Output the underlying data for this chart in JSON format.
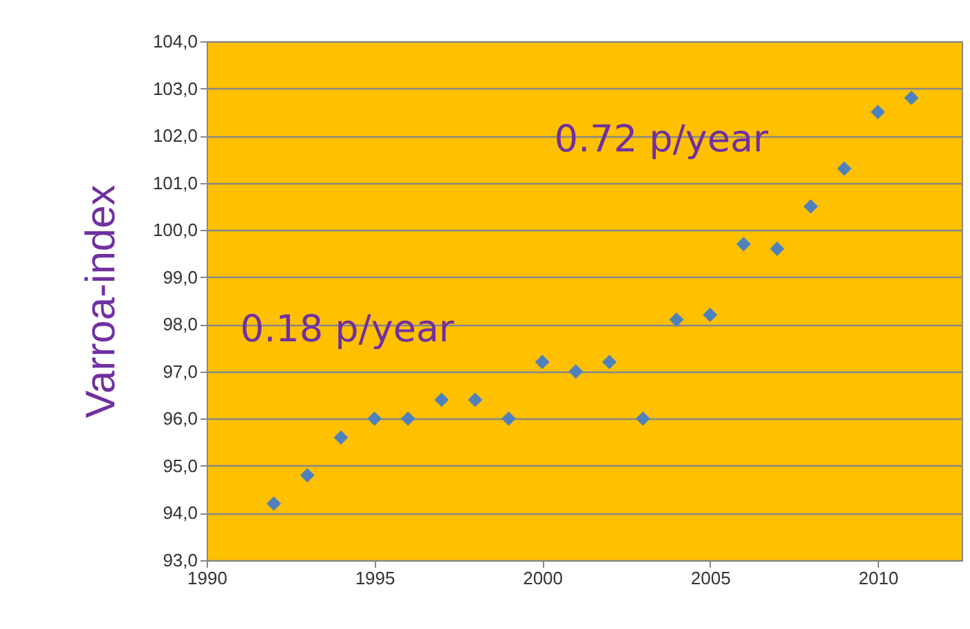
{
  "chart_data": {
    "type": "scatter",
    "ylabel": "Varroa-index",
    "x": [
      1992,
      1993,
      1994,
      1995,
      1996,
      1997,
      1998,
      1999,
      2000,
      2001,
      2002,
      2003,
      2004,
      2005,
      2006,
      2007,
      2008,
      2009,
      2010,
      2011
    ],
    "series": [
      {
        "color": "#4f81bd",
        "values": [
          94.2,
          94.8,
          95.6,
          96.0,
          96.0,
          96.4,
          96.4,
          96.0,
          97.2,
          97.0,
          97.2,
          96.0,
          98.1,
          98.2,
          99.7,
          99.6,
          100.5,
          101.3,
          102.5,
          102.8
        ]
      }
    ],
    "marker": "diamond",
    "grid": "y",
    "xlim": [
      1990,
      2012.5
    ],
    "xticks": [
      1990,
      1995,
      2000,
      2005,
      2010
    ],
    "ylim": [
      93,
      104
    ],
    "yticks": [
      {
        "value": 93,
        "label": "93,0"
      },
      {
        "value": 94,
        "label": "94,0"
      },
      {
        "value": 95,
        "label": "95,0"
      },
      {
        "value": 96,
        "label": "96,0"
      },
      {
        "value": 97,
        "label": "97,0"
      },
      {
        "value": 98,
        "label": "98,0"
      },
      {
        "value": 99,
        "label": "99,0"
      },
      {
        "value": 100,
        "label": "100,0"
      },
      {
        "value": 101,
        "label": "101,0"
      },
      {
        "value": 102,
        "label": "102,0"
      },
      {
        "value": 103,
        "label": "103,0"
      },
      {
        "value": 104,
        "label": "104,0"
      }
    ],
    "annotations": [
      "0.18 p/year",
      "0.72 p/year"
    ]
  }
}
